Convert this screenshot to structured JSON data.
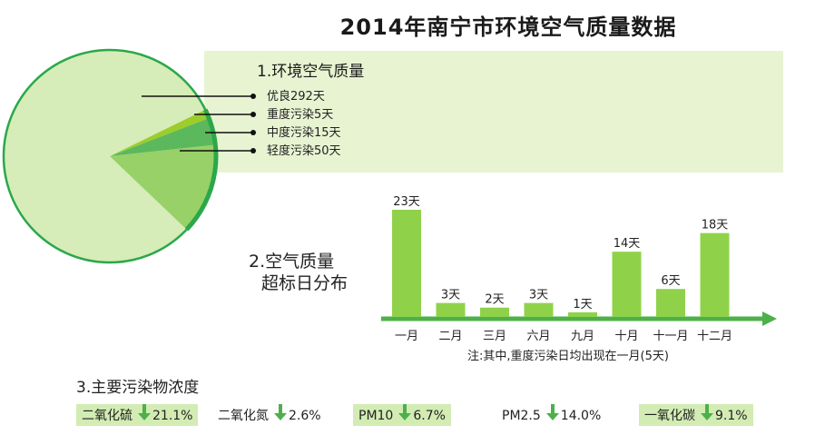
{
  "title": "2014年南宁市环境空气质量数据",
  "section1": {
    "title": "1.环境空气质量",
    "legend": [
      "优良292天",
      "重度污染5天",
      "中度污染15天",
      "轻度污染50天"
    ]
  },
  "section2": {
    "title_line1": "2.空气质量",
    "title_line2": "超标日分布",
    "note": "注:其中,重度污染日均出现在一月(5天)"
  },
  "section3": {
    "title": "3.主要污染物浓度",
    "items": [
      {
        "name": "二氧化硫",
        "value": "21.1%",
        "shaded": true
      },
      {
        "name": "二氧化氮",
        "value": "2.6%",
        "shaded": false
      },
      {
        "name": "PM10",
        "value": "6.7%",
        "shaded": true
      },
      {
        "name": "PM2.5",
        "value": "14.0%",
        "shaded": false
      },
      {
        "name": "一氧化碳",
        "value": "9.1%",
        "shaded": true
      }
    ]
  },
  "colors": {
    "good": "#d6ecb9",
    "heavy": "#9ccd2b",
    "moderate": "#5cb85c",
    "light": "#97d167",
    "outline": "#2aa84a",
    "bar": "#8fd24a",
    "arrow": "#4db04a"
  },
  "chart_data": [
    {
      "type": "pie",
      "title": "1.环境空气质量",
      "labels": [
        "优良292天",
        "重度污染5天",
        "中度污染15天",
        "轻度污染50天"
      ],
      "values": [
        292,
        5,
        15,
        50
      ]
    },
    {
      "type": "bar",
      "title": "2.空气质量超标日分布",
      "categories": [
        "一月",
        "二月",
        "三月",
        "六月",
        "九月",
        "十月",
        "十一月",
        "十二月"
      ],
      "values": [
        23,
        3,
        2,
        3,
        1,
        14,
        6,
        18
      ],
      "value_labels": [
        "23天",
        "3天",
        "2天",
        "3天",
        "1天",
        "14天",
        "6天",
        "18天"
      ]
    }
  ]
}
